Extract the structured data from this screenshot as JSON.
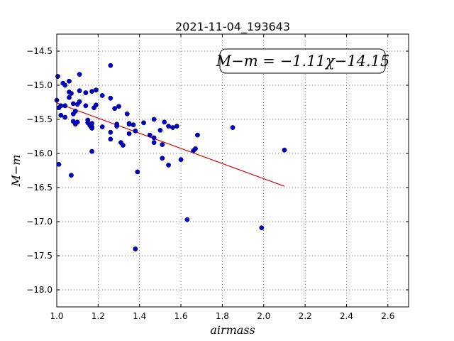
{
  "chart_data": {
    "type": "scatter",
    "title": "2021-11-04_193643",
    "xlabel": "airmass",
    "ylabel": "M−m",
    "xlim": [
      1.0,
      2.7
    ],
    "ylim": [
      -18.25,
      -14.25
    ],
    "y_inverted": true,
    "grid": true,
    "x_ticks": [
      1.0,
      1.2,
      1.4,
      1.6,
      1.8,
      2.0,
      2.2,
      2.4,
      2.6
    ],
    "x_tick_labels": [
      "1.0",
      "1.2",
      "1.4",
      "1.6",
      "1.8",
      "2.0",
      "2.2",
      "2.4",
      "2.6"
    ],
    "y_ticks": [
      -14.5,
      -15.0,
      -15.5,
      -16.0,
      -16.5,
      -17.0,
      -17.5,
      -18.0
    ],
    "y_tick_labels": [
      "−14.5",
      "−15.0",
      "−15.5",
      "−16.0",
      "−16.5",
      "−17.0",
      "−17.5",
      "−18.0"
    ],
    "annotation": "M−m = −1.11χ−14.15",
    "marker_color": "#0000cc",
    "fit_color": "#dd0000",
    "fit": {
      "slope": -1.11,
      "intercept": -14.15,
      "x_range": [
        1.0,
        2.1
      ]
    },
    "points": [
      [
        1.005,
        -14.87
      ],
      [
        1.0,
        -15.22
      ],
      [
        1.01,
        -15.33
      ],
      [
        1.01,
        -16.16
      ],
      [
        1.02,
        -15.3
      ],
      [
        1.02,
        -15.44
      ],
      [
        1.03,
        -14.97
      ],
      [
        1.04,
        -15.0
      ],
      [
        1.04,
        -15.3
      ],
      [
        1.04,
        -15.47
      ],
      [
        1.06,
        -14.94
      ],
      [
        1.06,
        -15.1
      ],
      [
        1.06,
        -15.18
      ],
      [
        1.07,
        -15.12
      ],
      [
        1.07,
        -16.32
      ],
      [
        1.08,
        -15.27
      ],
      [
        1.08,
        -15.42
      ],
      [
        1.08,
        -15.53
      ],
      [
        1.09,
        -15.38
      ],
      [
        1.09,
        -15.57
      ],
      [
        1.1,
        -15.28
      ],
      [
        1.1,
        -15.54
      ],
      [
        1.11,
        -15.24
      ],
      [
        1.11,
        -15.08
      ],
      [
        1.11,
        -14.84
      ],
      [
        1.14,
        -15.11
      ],
      [
        1.14,
        -15.3
      ],
      [
        1.15,
        -15.55
      ],
      [
        1.15,
        -15.51
      ],
      [
        1.16,
        -15.59
      ],
      [
        1.17,
        -15.09
      ],
      [
        1.17,
        -15.61
      ],
      [
        1.17,
        -15.63
      ],
      [
        1.17,
        -15.56
      ],
      [
        1.17,
        -15.97
      ],
      [
        1.18,
        -15.33
      ],
      [
        1.19,
        -15.07
      ],
      [
        1.19,
        -15.29
      ],
      [
        1.22,
        -15.15
      ],
      [
        1.22,
        -15.61
      ],
      [
        1.26,
        -14.71
      ],
      [
        1.26,
        -15.19
      ],
      [
        1.26,
        -15.69
      ],
      [
        1.26,
        -15.79
      ],
      [
        1.28,
        -15.34
      ],
      [
        1.29,
        -15.57
      ],
      [
        1.29,
        -15.6
      ],
      [
        1.3,
        -15.31
      ],
      [
        1.31,
        -15.84
      ],
      [
        1.32,
        -15.88
      ],
      [
        1.34,
        -15.42
      ],
      [
        1.35,
        -15.56
      ],
      [
        1.35,
        -15.57
      ],
      [
        1.35,
        -15.71
      ],
      [
        1.37,
        -15.58
      ],
      [
        1.38,
        -17.4
      ],
      [
        1.38,
        -15.67
      ],
      [
        1.39,
        -16.27
      ],
      [
        1.42,
        -15.55
      ],
      [
        1.45,
        -15.73
      ],
      [
        1.47,
        -15.5
      ],
      [
        1.47,
        -15.77
      ],
      [
        1.47,
        -15.84
      ],
      [
        1.5,
        -15.66
      ],
      [
        1.51,
        -15.87
      ],
      [
        1.51,
        -16.07
      ],
      [
        1.52,
        -15.54
      ],
      [
        1.54,
        -15.6
      ],
      [
        1.54,
        -16.17
      ],
      [
        1.56,
        -15.62
      ],
      [
        1.58,
        -15.6
      ],
      [
        1.6,
        -16.09
      ],
      [
        1.63,
        -16.97
      ],
      [
        1.66,
        -15.96
      ],
      [
        1.67,
        -15.93
      ],
      [
        1.68,
        -15.73
      ],
      [
        1.85,
        -15.62
      ],
      [
        1.99,
        -17.09
      ],
      [
        2.1,
        -15.95
      ]
    ]
  }
}
